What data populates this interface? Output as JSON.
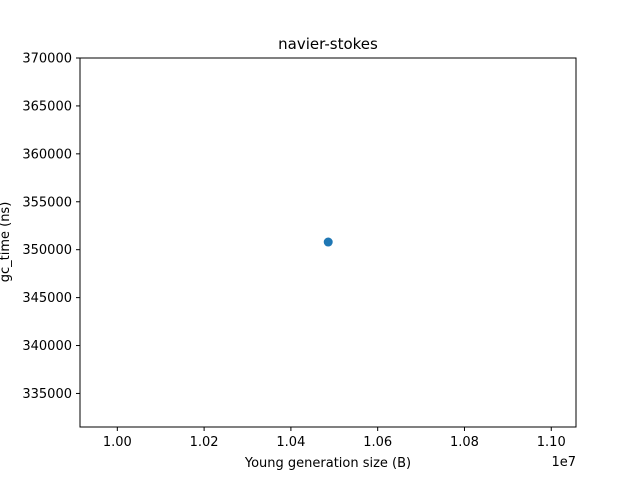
{
  "chart_data": {
    "type": "scatter",
    "title": "navier-stokes",
    "xlabel": "Young generation size (B)",
    "ylabel": "gc_time (ns)",
    "x_offset_label": "1e7",
    "xlim": [
      0.9914,
      1.1057
    ],
    "ylim": [
      331500,
      370000
    ],
    "x_ticks": [
      {
        "value": 1.0,
        "label": "1.00"
      },
      {
        "value": 1.02,
        "label": "1.02"
      },
      {
        "value": 1.04,
        "label": "1.04"
      },
      {
        "value": 1.06,
        "label": "1.06"
      },
      {
        "value": 1.08,
        "label": "1.08"
      },
      {
        "value": 1.1,
        "label": "1.10"
      }
    ],
    "y_ticks": [
      {
        "value": 335000,
        "label": "335000"
      },
      {
        "value": 340000,
        "label": "340000"
      },
      {
        "value": 345000,
        "label": "345000"
      },
      {
        "value": 350000,
        "label": "350000"
      },
      {
        "value": 355000,
        "label": "355000"
      },
      {
        "value": 360000,
        "label": "360000"
      },
      {
        "value": 365000,
        "label": "365000"
      },
      {
        "value": 370000,
        "label": "370000"
      }
    ],
    "series": [
      {
        "points": [
          {
            "x": 1.0486,
            "y": 350800
          }
        ]
      }
    ],
    "grid": false,
    "legend": "none",
    "colors": {
      "point": "#1f77b4",
      "axes": "#000000"
    }
  }
}
